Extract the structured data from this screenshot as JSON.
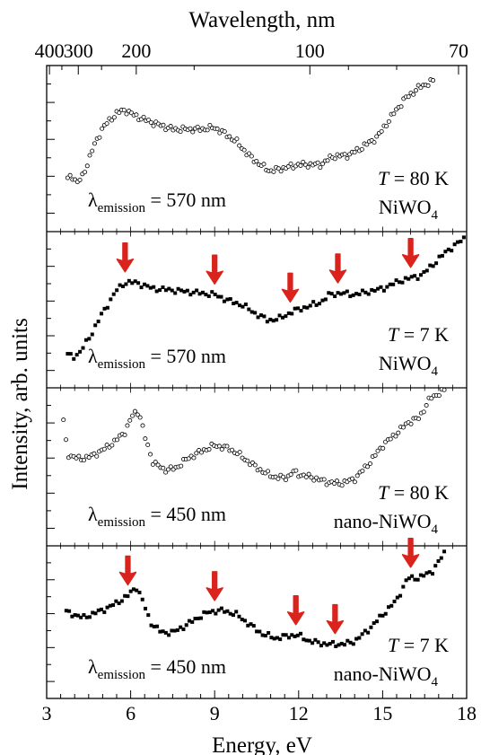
{
  "chart_data": {
    "type": "scatter",
    "top_axis": {
      "label": "Wavelength, nm",
      "ticks": [
        {
          "label": "400",
          "energy_ev": 3.1
        },
        {
          "label": "300",
          "energy_ev": 4.13
        },
        {
          "label": "200",
          "energy_ev": 6.2
        },
        {
          "label": "100",
          "energy_ev": 12.4
        },
        {
          "label": "70",
          "energy_ev": 17.71
        }
      ]
    },
    "xlabel": "Energy, eV",
    "xlim": [
      3,
      18
    ],
    "xticks": [
      3,
      6,
      9,
      12,
      15,
      18
    ],
    "ylabel": "Intensity, arb. units",
    "panels": [
      {
        "id": "p1",
        "temperature": "80",
        "sample": "NiWO",
        "sample_prefix": "",
        "emission": "570",
        "marker": "open-circle",
        "ylim": [
          0,
          1
        ],
        "arrows": [],
        "anchors": [
          [
            3.75,
            0.31
          ],
          [
            3.9,
            0.33
          ],
          [
            4.1,
            0.29
          ],
          [
            4.3,
            0.33
          ],
          [
            4.6,
            0.48
          ],
          [
            5.0,
            0.63
          ],
          [
            5.5,
            0.72
          ],
          [
            5.8,
            0.74
          ],
          [
            6.2,
            0.7
          ],
          [
            6.8,
            0.66
          ],
          [
            7.5,
            0.62
          ],
          [
            8.0,
            0.62
          ],
          [
            8.5,
            0.62
          ],
          [
            9.0,
            0.63
          ],
          [
            9.3,
            0.6
          ],
          [
            9.8,
            0.54
          ],
          [
            10.2,
            0.46
          ],
          [
            10.7,
            0.39
          ],
          [
            11.0,
            0.36
          ],
          [
            11.5,
            0.38
          ],
          [
            12.0,
            0.4
          ],
          [
            12.8,
            0.4
          ],
          [
            13.2,
            0.45
          ],
          [
            13.8,
            0.46
          ],
          [
            14.2,
            0.5
          ],
          [
            14.8,
            0.57
          ],
          [
            15.4,
            0.72
          ],
          [
            15.8,
            0.81
          ],
          [
            16.3,
            0.88
          ],
          [
            16.8,
            0.92
          ]
        ],
        "points": 150
      },
      {
        "id": "p2",
        "temperature": "7",
        "sample": "NiWO",
        "sample_prefix": "",
        "emission": "570",
        "marker": "filled-square",
        "ylim": [
          0,
          1
        ],
        "arrows": [
          5.8,
          9.0,
          11.7,
          13.4,
          16.0
        ],
        "anchors": [
          [
            3.75,
            0.2
          ],
          [
            4.0,
            0.19
          ],
          [
            4.2,
            0.22
          ],
          [
            4.6,
            0.34
          ],
          [
            5.0,
            0.48
          ],
          [
            5.5,
            0.63
          ],
          [
            5.8,
            0.68
          ],
          [
            6.2,
            0.68
          ],
          [
            6.8,
            0.64
          ],
          [
            7.5,
            0.63
          ],
          [
            8.0,
            0.62
          ],
          [
            8.5,
            0.61
          ],
          [
            9.0,
            0.6
          ],
          [
            9.5,
            0.56
          ],
          [
            10.0,
            0.53
          ],
          [
            10.5,
            0.47
          ],
          [
            10.9,
            0.43
          ],
          [
            11.3,
            0.44
          ],
          [
            11.8,
            0.49
          ],
          [
            12.3,
            0.52
          ],
          [
            12.8,
            0.55
          ],
          [
            13.1,
            0.6
          ],
          [
            13.5,
            0.61
          ],
          [
            14.0,
            0.6
          ],
          [
            14.5,
            0.62
          ],
          [
            15.0,
            0.64
          ],
          [
            15.6,
            0.69
          ],
          [
            16.0,
            0.71
          ],
          [
            16.4,
            0.73
          ],
          [
            16.8,
            0.8
          ],
          [
            17.3,
            0.89
          ],
          [
            17.9,
            0.97
          ]
        ],
        "points": 130
      },
      {
        "id": "p3",
        "temperature": "80",
        "sample": "NiWO",
        "sample_prefix": "nano-",
        "emission": "450",
        "marker": "open-circle",
        "ylim": [
          0,
          1
        ],
        "arrows": [],
        "anchors": [
          [
            3.6,
            0.8
          ],
          [
            3.75,
            0.58
          ],
          [
            4.2,
            0.55
          ],
          [
            4.6,
            0.57
          ],
          [
            5.0,
            0.61
          ],
          [
            5.4,
            0.66
          ],
          [
            5.8,
            0.73
          ],
          [
            6.1,
            0.85
          ],
          [
            6.3,
            0.86
          ],
          [
            6.5,
            0.7
          ],
          [
            6.8,
            0.53
          ],
          [
            7.2,
            0.48
          ],
          [
            7.6,
            0.49
          ],
          [
            8.0,
            0.55
          ],
          [
            8.5,
            0.6
          ],
          [
            9.0,
            0.64
          ],
          [
            9.5,
            0.62
          ],
          [
            9.8,
            0.59
          ],
          [
            10.3,
            0.52
          ],
          [
            10.8,
            0.46
          ],
          [
            11.2,
            0.43
          ],
          [
            11.6,
            0.43
          ],
          [
            11.8,
            0.47
          ],
          [
            12.0,
            0.45
          ],
          [
            12.5,
            0.43
          ],
          [
            13.0,
            0.4
          ],
          [
            13.5,
            0.39
          ],
          [
            14.0,
            0.42
          ],
          [
            14.5,
            0.52
          ],
          [
            15.0,
            0.64
          ],
          [
            15.5,
            0.72
          ],
          [
            15.9,
            0.79
          ],
          [
            16.3,
            0.82
          ],
          [
            16.7,
            0.95
          ],
          [
            17.2,
            1.0
          ]
        ],
        "points": 150
      },
      {
        "id": "p4",
        "temperature": "7",
        "sample": "NiWO",
        "sample_prefix": "nano-",
        "emission": "450",
        "marker": "filled-square",
        "ylim": [
          0,
          1
        ],
        "arrows": [
          5.9,
          9.0,
          11.9,
          13.3,
          16.0
        ],
        "anchors": [
          [
            3.7,
            0.57
          ],
          [
            4.0,
            0.55
          ],
          [
            4.3,
            0.53
          ],
          [
            4.7,
            0.56
          ],
          [
            5.1,
            0.59
          ],
          [
            5.5,
            0.63
          ],
          [
            5.9,
            0.68
          ],
          [
            6.2,
            0.74
          ],
          [
            6.4,
            0.66
          ],
          [
            6.7,
            0.5
          ],
          [
            7.1,
            0.43
          ],
          [
            7.5,
            0.43
          ],
          [
            7.9,
            0.47
          ],
          [
            8.4,
            0.53
          ],
          [
            8.8,
            0.57
          ],
          [
            9.3,
            0.58
          ],
          [
            9.8,
            0.55
          ],
          [
            10.2,
            0.49
          ],
          [
            10.7,
            0.42
          ],
          [
            11.2,
            0.39
          ],
          [
            11.7,
            0.41
          ],
          [
            12.0,
            0.41
          ],
          [
            12.4,
            0.37
          ],
          [
            13.0,
            0.35
          ],
          [
            13.6,
            0.35
          ],
          [
            14.0,
            0.37
          ],
          [
            14.5,
            0.45
          ],
          [
            15.0,
            0.55
          ],
          [
            15.5,
            0.65
          ],
          [
            15.9,
            0.8
          ],
          [
            16.3,
            0.8
          ],
          [
            16.8,
            0.85
          ],
          [
            17.2,
            0.97
          ]
        ],
        "points": 130
      }
    ]
  }
}
